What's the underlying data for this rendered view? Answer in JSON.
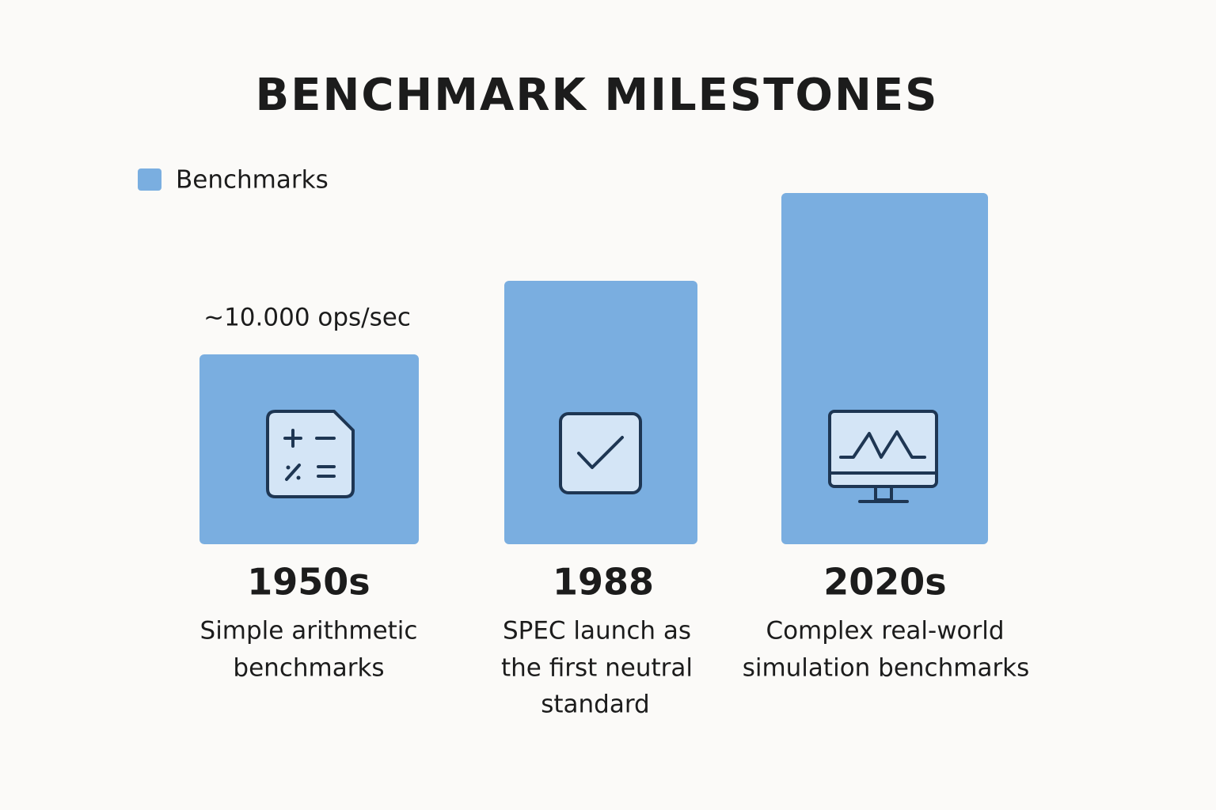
{
  "title": "BENCHMARK MILESTONES",
  "legend": "Benchmarks",
  "items": [
    {
      "year": "1950s",
      "value_label": "~10.000 ops/sec",
      "description": [
        "Simple arithmetic",
        "benchmarks"
      ]
    },
    {
      "year": "1988",
      "description": [
        "SPEC launch as",
        "the first neutral",
        "standard"
      ]
    },
    {
      "year": "2020s",
      "description": [
        "Complex real-world",
        "simulation benchmarks"
      ]
    }
  ]
}
